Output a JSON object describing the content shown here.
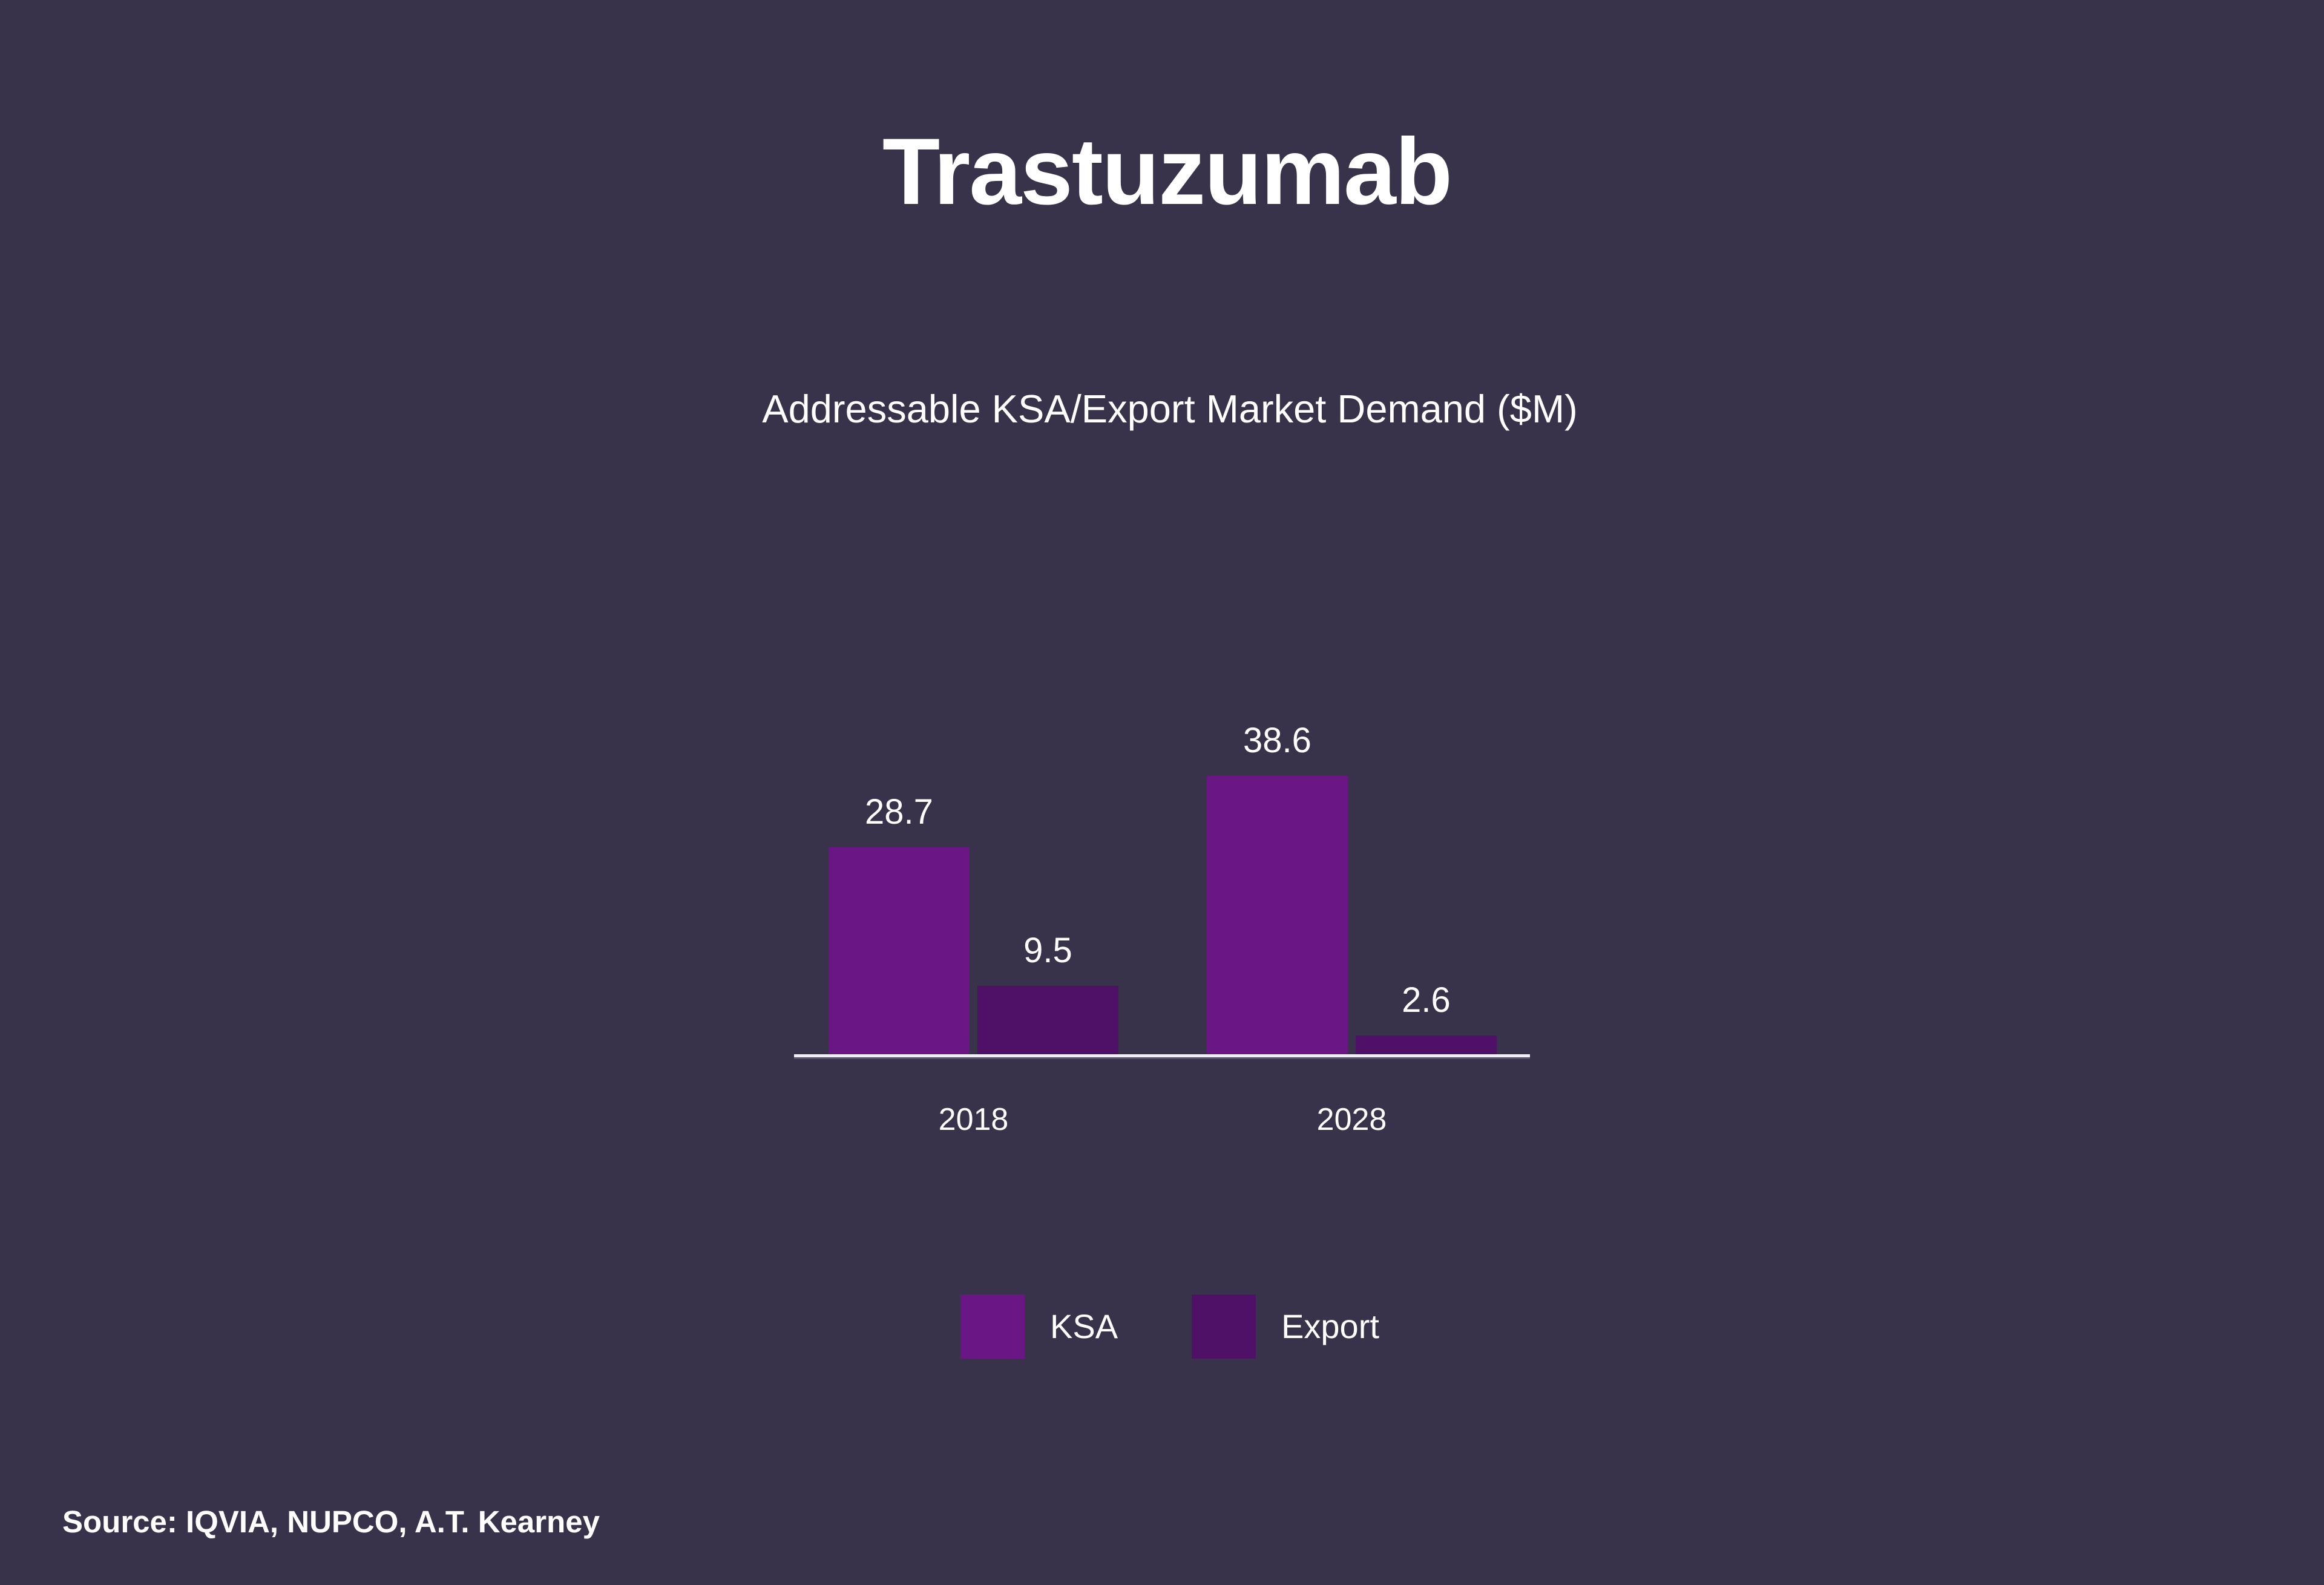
{
  "slide": {
    "title": "Trastuzumab",
    "source": "Source: IQVIA, NUPCO, A.T. Kearney"
  },
  "colors": {
    "background": "#38334A",
    "ksa_bar": "#6A1685",
    "export_bar": "#4F1168",
    "axis_line": "#F0EEF5",
    "text": "#FFFFFF"
  },
  "chart_data": {
    "type": "bar",
    "title": "Addressable KSA/Export Market Demand ($M)",
    "categories": [
      "2018",
      "2028"
    ],
    "series": [
      {
        "name": "KSA",
        "color": "#6A1685",
        "values": [
          28.7,
          38.6
        ]
      },
      {
        "name": "Export",
        "color": "#4F1168",
        "values": [
          9.5,
          2.6
        ]
      }
    ],
    "data_labels": true,
    "grid": false,
    "y_axis_visible": false,
    "legend_position": "bottom",
    "ylim": [
      0,
      43
    ]
  }
}
